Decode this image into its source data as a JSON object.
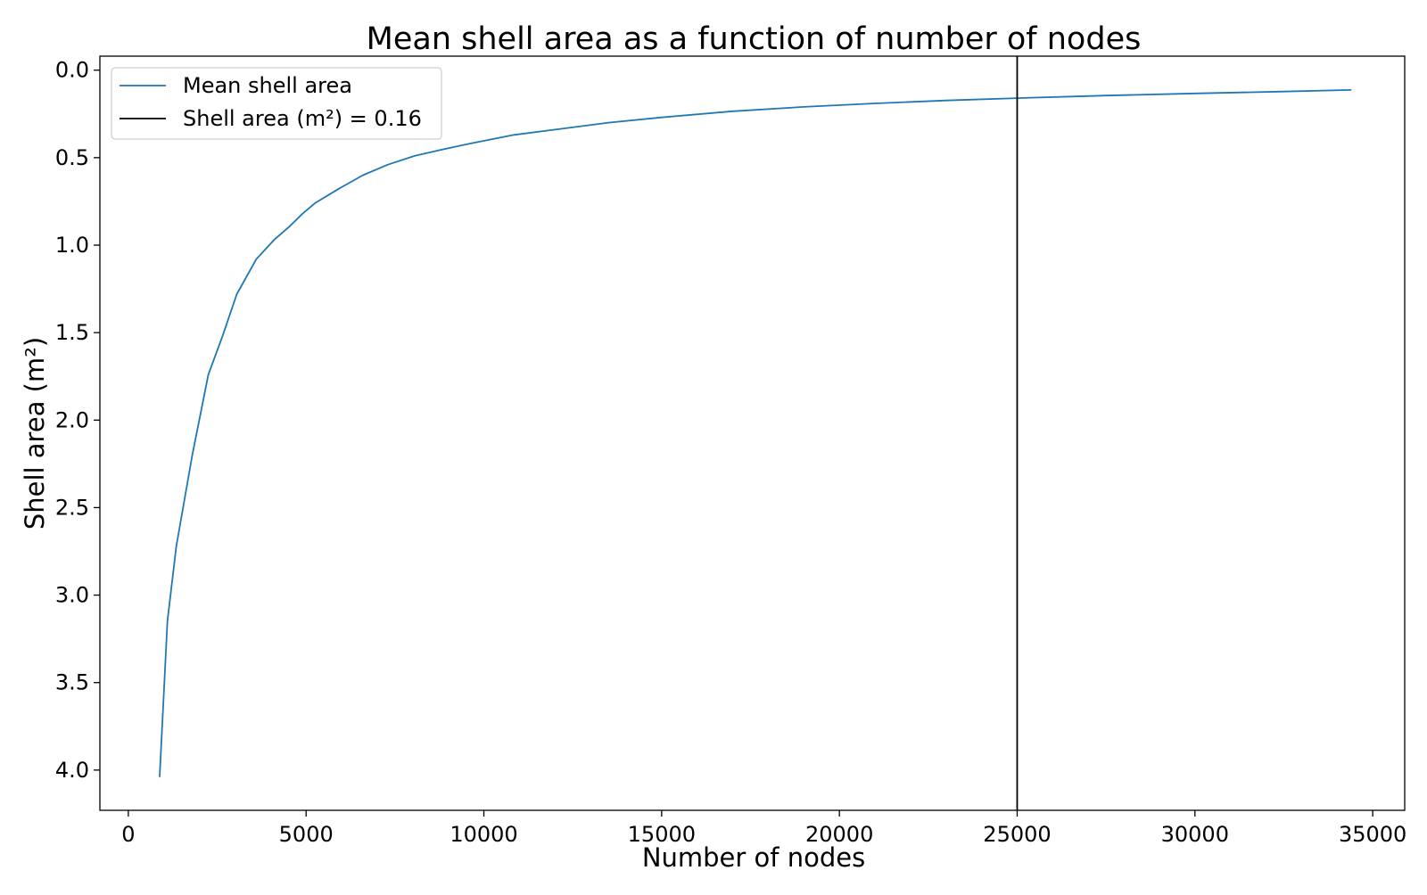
{
  "chart_data": {
    "type": "line",
    "title": "Mean shell area as a function of number of nodes",
    "xlabel": "Number of nodes",
    "ylabel": "Shell area (m²)",
    "xlim": [
      -800,
      35900
    ],
    "ylim": [
      4.23,
      -0.08
    ],
    "y_inverted": true,
    "xticks": [
      0,
      5000,
      10000,
      15000,
      20000,
      25000,
      30000,
      35000
    ],
    "xtick_labels": [
      "0",
      "5000",
      "10000",
      "15000",
      "20000",
      "25000",
      "30000",
      "35000"
    ],
    "yticks": [
      0.0,
      0.5,
      1.0,
      1.5,
      2.0,
      2.5,
      3.0,
      3.5,
      4.0
    ],
    "ytick_labels": [
      "0.0",
      "0.5",
      "1.0",
      "1.5",
      "2.0",
      "2.5",
      "3.0",
      "3.5",
      "4.0"
    ],
    "grid": false,
    "legend_position": "top-left",
    "series": [
      {
        "name": "Mean shell area",
        "color": "#1f77b4",
        "x": [
          880,
          1100,
          1350,
          1800,
          2250,
          2650,
          3050,
          3600,
          4100,
          4550,
          4900,
          5250,
          5900,
          6600,
          7300,
          8050,
          8800,
          9600,
          10850,
          12000,
          13500,
          15000,
          17000,
          19000,
          21000,
          23000,
          25000,
          27500,
          30000,
          32500,
          34400
        ],
        "y": [
          4.04,
          3.15,
          2.72,
          2.2,
          1.74,
          1.52,
          1.28,
          1.08,
          0.97,
          0.89,
          0.82,
          0.76,
          0.68,
          0.6,
          0.54,
          0.49,
          0.455,
          0.42,
          0.37,
          0.34,
          0.3,
          0.27,
          0.235,
          0.21,
          0.19,
          0.173,
          0.16,
          0.145,
          0.133,
          0.122,
          0.113
        ]
      }
    ],
    "vline": {
      "name": "Shell area (m²) = 0.16",
      "x": 25000,
      "color": "#000000"
    }
  }
}
